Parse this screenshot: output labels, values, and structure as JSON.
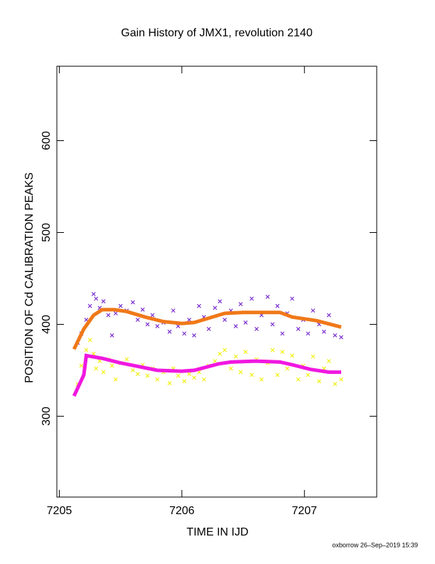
{
  "chart_data": {
    "type": "scatter",
    "title": "Gain History of JMX1, revolution 2140",
    "xlabel": "TIME IN IJD",
    "ylabel": "POSITION OF Cd CALIBRATION PEAKS",
    "footer": "oxborrow 26–Sep–2019 15:39",
    "xlim": [
      7204.98,
      7207.59
    ],
    "ylim": [
      212,
      681
    ],
    "xticks": [
      7205,
      7206,
      7207
    ],
    "yticks": [
      300,
      400,
      500,
      600
    ],
    "series": [
      {
        "color": "#7b2fd0",
        "mode": "markers",
        "x": [
          7205.15,
          7205.18,
          7205.22,
          7205.25,
          7205.28,
          7205.3,
          7205.33,
          7205.36,
          7205.4,
          7205.43,
          7205.46,
          7205.5,
          7205.55,
          7205.6,
          7205.64,
          7205.68,
          7205.72,
          7205.76,
          7205.8,
          7205.85,
          7205.9,
          7205.93,
          7205.97,
          7206.02,
          7206.06,
          7206.1,
          7206.14,
          7206.18,
          7206.22,
          7206.27,
          7206.31,
          7206.35,
          7206.4,
          7206.44,
          7206.48,
          7206.52,
          7206.57,
          7206.61,
          7206.65,
          7206.7,
          7206.74,
          7206.78,
          7206.82,
          7206.86,
          7206.9,
          7206.95,
          7206.99,
          7207.03,
          7207.07,
          7207.12,
          7207.16,
          7207.2,
          7207.25,
          7207.3
        ],
        "values": [
          380,
          390,
          405,
          420,
          433,
          428,
          418,
          425,
          410,
          388,
          412,
          420,
          415,
          424,
          405,
          416,
          400,
          410,
          398,
          402,
          392,
          415,
          398,
          390,
          405,
          388,
          420,
          408,
          395,
          418,
          425,
          405,
          415,
          398,
          422,
          402,
          428,
          395,
          410,
          430,
          400,
          420,
          390,
          412,
          428,
          395,
          405,
          390,
          415,
          400,
          392,
          410,
          388,
          386
        ]
      },
      {
        "color": "#f07818",
        "mode": "line",
        "x": [
          7205.12,
          7205.2,
          7205.28,
          7205.35,
          7205.45,
          7205.55,
          7205.7,
          7205.85,
          7206.0,
          7206.1,
          7206.2,
          7206.35,
          7206.5,
          7206.8,
          7206.9,
          7207.1,
          7207.3
        ],
        "values": [
          373,
          395,
          410,
          416,
          416,
          414,
          408,
          403,
          401,
          402,
          406,
          412,
          413,
          413,
          408,
          404,
          397
        ]
      },
      {
        "color": "#f0f018",
        "mode": "markers",
        "x": [
          7205.15,
          7205.18,
          7205.22,
          7205.25,
          7205.28,
          7205.3,
          7205.33,
          7205.36,
          7205.4,
          7205.43,
          7205.46,
          7205.5,
          7205.55,
          7205.6,
          7205.64,
          7205.68,
          7205.72,
          7205.76,
          7205.8,
          7205.85,
          7205.9,
          7205.93,
          7205.97,
          7206.02,
          7206.06,
          7206.1,
          7206.14,
          7206.18,
          7206.22,
          7206.27,
          7206.31,
          7206.35,
          7206.4,
          7206.44,
          7206.48,
          7206.52,
          7206.57,
          7206.61,
          7206.65,
          7206.7,
          7206.74,
          7206.78,
          7206.82,
          7206.86,
          7206.9,
          7206.95,
          7206.99,
          7207.03,
          7207.07,
          7207.12,
          7207.16,
          7207.2,
          7207.25,
          7207.3
        ],
        "values": [
          335,
          355,
          372,
          383,
          368,
          352,
          360,
          348,
          362,
          355,
          340,
          358,
          362,
          350,
          346,
          356,
          344,
          352,
          340,
          348,
          336,
          352,
          344,
          338,
          346,
          342,
          348,
          340,
          355,
          360,
          368,
          372,
          352,
          365,
          348,
          370,
          345,
          362,
          340,
          358,
          372,
          345,
          370,
          352,
          366,
          340,
          355,
          345,
          365,
          338,
          352,
          360,
          335,
          340
        ]
      },
      {
        "color": "#f018e0",
        "mode": "line",
        "x": [
          7205.12,
          7205.2,
          7205.22,
          7205.35,
          7205.5,
          7205.65,
          7205.8,
          7206.0,
          7206.1,
          7206.3,
          7206.4,
          7206.6,
          7206.8,
          7206.9,
          7207.05,
          7207.2,
          7207.3
        ],
        "values": [
          322,
          345,
          366,
          363,
          358,
          354,
          350,
          349,
          350,
          357,
          359,
          360,
          359,
          356,
          351,
          348,
          348
        ]
      }
    ]
  }
}
